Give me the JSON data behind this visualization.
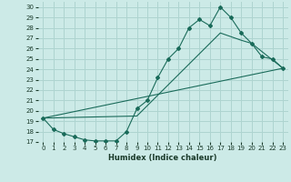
{
  "xlabel": "Humidex (Indice chaleur)",
  "bg_color": "#cceae7",
  "line_color": "#1a6b5a",
  "grid_color": "#aed4d0",
  "xlim": [
    -0.5,
    23.5
  ],
  "ylim": [
    17,
    30.5
  ],
  "yticks": [
    17,
    18,
    19,
    20,
    21,
    22,
    23,
    24,
    25,
    26,
    27,
    28,
    29,
    30
  ],
  "xticks": [
    0,
    1,
    2,
    3,
    4,
    5,
    6,
    7,
    8,
    9,
    10,
    11,
    12,
    13,
    14,
    15,
    16,
    17,
    18,
    19,
    20,
    21,
    22,
    23
  ],
  "line1_x": [
    0,
    1,
    2,
    3,
    4,
    5,
    6,
    7,
    8,
    9,
    10,
    11,
    12,
    13,
    14,
    15,
    16,
    17,
    18,
    19,
    20,
    21,
    22,
    23
  ],
  "line1_y": [
    19.3,
    18.2,
    17.8,
    17.5,
    17.2,
    17.1,
    17.1,
    17.1,
    18.0,
    20.2,
    21.0,
    23.2,
    25.0,
    26.0,
    28.0,
    28.8,
    28.2,
    30.0,
    29.0,
    27.5,
    26.5,
    25.2,
    25.0,
    24.1
  ],
  "line2_x": [
    0,
    23
  ],
  "line2_y": [
    19.3,
    24.1
  ],
  "line3_x": [
    0,
    9,
    10,
    17,
    19,
    20,
    23
  ],
  "line3_y": [
    19.3,
    19.5,
    20.5,
    27.5,
    26.8,
    26.5,
    24.1
  ]
}
